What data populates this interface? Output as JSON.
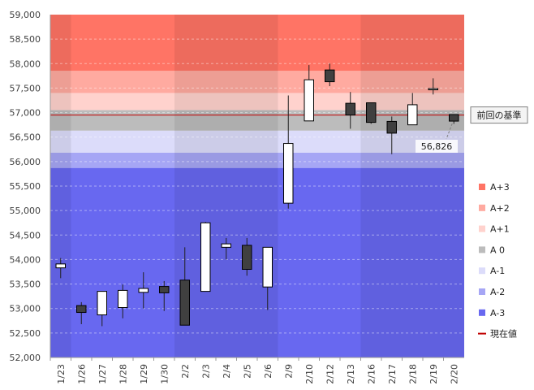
{
  "chart_data": {
    "type": "candlestick",
    "title": "",
    "xlabel": "",
    "ylabel": "",
    "ylim": [
      52000,
      59000
    ],
    "ytick_step": 500,
    "y_ticks": [
      "52,000",
      "52,500",
      "53,000",
      "53,500",
      "54,000",
      "54,500",
      "55,000",
      "55,500",
      "56,000",
      "56,500",
      "57,000",
      "57,500",
      "58,000",
      "58,500",
      "59,000"
    ],
    "categories": [
      "1/23",
      "1/26",
      "1/27",
      "1/28",
      "1/29",
      "1/30",
      "2/2",
      "2/3",
      "2/4",
      "2/5",
      "2/6",
      "2/9",
      "2/10",
      "2/12",
      "2/13",
      "2/16",
      "2/17",
      "2/18",
      "2/19",
      "2/20"
    ],
    "candles": [
      {
        "date": "1/23",
        "open": 53830,
        "close": 53910,
        "high": 54030,
        "low": 53620
      },
      {
        "date": "1/26",
        "open": 53060,
        "close": 52920,
        "high": 53130,
        "low": 52680
      },
      {
        "date": "1/27",
        "open": 52870,
        "close": 53350,
        "high": 53350,
        "low": 52640
      },
      {
        "date": "1/28",
        "open": 53020,
        "close": 53370,
        "high": 53490,
        "low": 52800
      },
      {
        "date": "1/29",
        "open": 53330,
        "close": 53410,
        "high": 53740,
        "low": 53000
      },
      {
        "date": "1/30",
        "open": 53450,
        "close": 53320,
        "high": 53560,
        "low": 52950
      },
      {
        "date": "2/2",
        "open": 53580,
        "close": 52660,
        "high": 54250,
        "low": 52660
      },
      {
        "date": "2/3",
        "open": 53350,
        "close": 54750,
        "high": 54770,
        "low": 53350
      },
      {
        "date": "2/4",
        "open": 54250,
        "close": 54320,
        "high": 54440,
        "low": 54000
      },
      {
        "date": "2/5",
        "open": 54290,
        "close": 53800,
        "high": 54440,
        "low": 53670
      },
      {
        "date": "2/6",
        "open": 53440,
        "close": 54250,
        "high": 54250,
        "low": 52970
      },
      {
        "date": "2/9",
        "open": 55150,
        "close": 56370,
        "high": 57350,
        "low": 55040
      },
      {
        "date": "2/10",
        "open": 56830,
        "close": 57670,
        "high": 57970,
        "low": 56830
      },
      {
        "date": "2/12",
        "open": 57870,
        "close": 57630,
        "high": 58000,
        "low": 57540
      },
      {
        "date": "2/13",
        "open": 57190,
        "close": 56950,
        "high": 57420,
        "low": 56670
      },
      {
        "date": "2/16",
        "open": 57200,
        "close": 56800,
        "high": 57200,
        "low": 56770
      },
      {
        "date": "2/17",
        "open": 56820,
        "close": 56580,
        "high": 56920,
        "low": 56150
      },
      {
        "date": "2/18",
        "open": 56750,
        "close": 57160,
        "high": 57400,
        "low": 56750
      },
      {
        "date": "2/19",
        "open": 57480,
        "close": 57490,
        "high": 57700,
        "low": 57370
      },
      {
        "date": "2/20",
        "open": 56960,
        "close": 56826,
        "high": 56960,
        "low": 56770
      }
    ],
    "bands": [
      {
        "name": "A+3",
        "from": 57850,
        "to": 59000,
        "color": "#ff7465"
      },
      {
        "name": "A+2",
        "from": 57400,
        "to": 57850,
        "color": "#ffaaa0"
      },
      {
        "name": "A+1",
        "from": 57050,
        "to": 57400,
        "color": "#ffd2cd"
      },
      {
        "name": "A 0",
        "from": 56630,
        "to": 57050,
        "color": "#bcbcbc"
      },
      {
        "name": "A-1",
        "from": 56180,
        "to": 56630,
        "color": "#dcdcfa"
      },
      {
        "name": "A-2",
        "from": 55870,
        "to": 56180,
        "color": "#a6a6f5"
      },
      {
        "name": "A-3",
        "from": 52000,
        "to": 55870,
        "color": "#6868f0"
      }
    ],
    "baseline": {
      "value": 56950,
      "label": "前回の基準",
      "color": "#c00000"
    },
    "current": {
      "value": 56826,
      "label": "56,826",
      "date": "2/20"
    },
    "shaded_columns": [
      "1/23",
      "2/2",
      "2/3",
      "2/4",
      "2/5",
      "2/6",
      "2/16",
      "2/17",
      "2/18",
      "2/19",
      "2/20"
    ],
    "legend": {
      "position": "right",
      "items": [
        {
          "label": "A+3",
          "color": "#ff7465",
          "kind": "box"
        },
        {
          "label": "A+2",
          "color": "#ffaaa0",
          "kind": "box"
        },
        {
          "label": "A+1",
          "color": "#ffd2cd",
          "kind": "box"
        },
        {
          "label": "A 0",
          "color": "#bcbcbc",
          "kind": "box"
        },
        {
          "label": "A-1",
          "color": "#dcdcfa",
          "kind": "box"
        },
        {
          "label": "A-2",
          "color": "#a6a6f5",
          "kind": "box"
        },
        {
          "label": "A-3",
          "color": "#6868f0",
          "kind": "box"
        },
        {
          "label": "現在値",
          "color": "#c00000",
          "kind": "line"
        }
      ]
    },
    "colors": {
      "up_body": "#ffffff",
      "down_body": "#404040",
      "wick": "#202020"
    },
    "grid": true
  }
}
